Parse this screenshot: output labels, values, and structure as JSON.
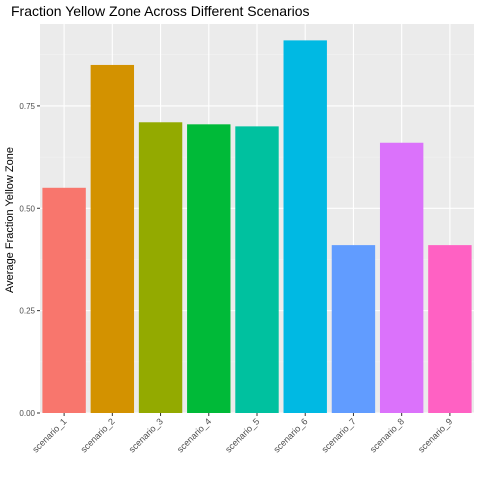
{
  "chart_data": {
    "type": "bar",
    "title": "Fraction Yellow Zone Across Different Scenarios",
    "xlabel": "",
    "ylabel": "Average Fraction Yellow Zone",
    "categories": [
      "scenario_1",
      "scenario_2",
      "scenario_3",
      "scenario_4",
      "scenario_5",
      "scenario_6",
      "scenario_7",
      "scenario_8",
      "scenario_9"
    ],
    "values": [
      0.55,
      0.85,
      0.71,
      0.705,
      0.7,
      0.91,
      0.41,
      0.66,
      0.41
    ],
    "colors": [
      "#F8766D",
      "#D39200",
      "#93AA00",
      "#00BA38",
      "#00C19F",
      "#00B9E3",
      "#619CFF",
      "#DB72FB",
      "#FF61C3"
    ],
    "ylim": [
      0,
      0.95
    ],
    "yticks": [
      0,
      0.25,
      0.5,
      0.75
    ],
    "ytick_labels": [
      "0.00",
      "0.25",
      "0.50",
      "0.75"
    ],
    "grid": true,
    "legend": "none",
    "panel_background": "#EBEBEB"
  }
}
